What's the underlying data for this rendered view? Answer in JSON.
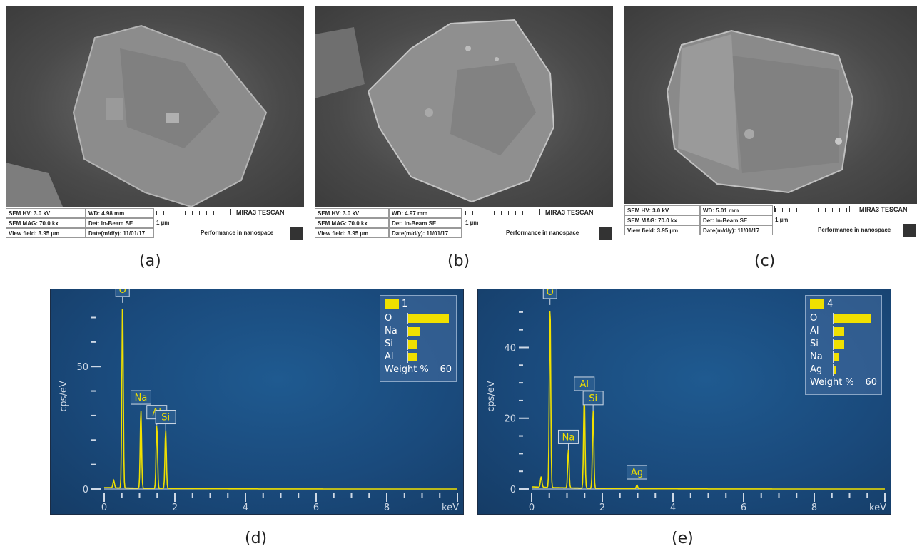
{
  "sem_panels": [
    {
      "hv": "SEM HV: 3.0 kV",
      "wd": "WD: 4.98 mm",
      "mag": "SEM MAG: 70.0 kx",
      "det": "Det: In-Beam SE",
      "scale": "1 µm",
      "field": "View field: 3.95 µm",
      "date": "Date(m/d/y): 11/01/17",
      "brand": "MIRA3 TESCAN",
      "slogan": "Performance in nanospace"
    },
    {
      "hv": "SEM HV: 3.0 kV",
      "wd": "WD: 4.97 mm",
      "mag": "SEM MAG: 70.0 kx",
      "det": "Det: In-Beam SE",
      "scale": "1 µm",
      "field": "View field: 3.95 µm",
      "date": "Date(m/d/y): 11/01/17",
      "brand": "MIRA3 TESCAN",
      "slogan": "Performance in nanospace"
    },
    {
      "hv": "SEM HV: 3.0 kV",
      "wd": "WD: 5.01 mm",
      "mag": "SEM MAG: 70.0 kx",
      "det": "Det: In-Beam SE",
      "scale": "1 µm",
      "field": "View field: 3.95 µm",
      "date": "Date(m/d/y): 11/01/17",
      "brand": "MIRA3 TESCAN",
      "slogan": "Performance in nanospace"
    }
  ],
  "captions": {
    "a": "(a)",
    "b": "(b)",
    "c": "(c)",
    "d": "(d)",
    "e": "(e)"
  },
  "colors": {
    "spectrum": "#f0e000",
    "background": "#1a4a7c",
    "axis": "#cfd9e6"
  },
  "chart_data": [
    {
      "type": "line",
      "ylabel": "cps/eV",
      "xunit": "keV",
      "xlim": [
        0,
        10
      ],
      "ylim": [
        0,
        78
      ],
      "xticks": [
        0,
        2,
        4,
        6,
        8
      ],
      "yticks": [
        0,
        50
      ],
      "peaks": [
        {
          "label": "O",
          "x": 0.52,
          "y": 76
        },
        {
          "label": "Na",
          "x": 1.04,
          "y": 32
        },
        {
          "label": "Al",
          "x": 1.49,
          "y": 26
        },
        {
          "label": "Si",
          "x": 1.74,
          "y": 24
        }
      ],
      "legend": {
        "label": "1",
        "items": [
          {
            "element": "O",
            "value": 57
          },
          {
            "element": "Na",
            "value": 16
          },
          {
            "element": "Si",
            "value": 13
          },
          {
            "element": "Al",
            "value": 13
          }
        ],
        "footer": "Weight %",
        "max": "60"
      }
    },
    {
      "type": "line",
      "ylabel": "cps/eV",
      "xunit": "keV",
      "xlim": [
        0,
        10
      ],
      "ylim": [
        0,
        54
      ],
      "xticks": [
        0,
        2,
        4,
        6,
        8
      ],
      "yticks": [
        0,
        20,
        40
      ],
      "peaks": [
        {
          "label": "O",
          "x": 0.52,
          "y": 52
        },
        {
          "label": "Na",
          "x": 1.04,
          "y": 11
        },
        {
          "label": "Al",
          "x": 1.49,
          "y": 26
        },
        {
          "label": "Si",
          "x": 1.74,
          "y": 22
        },
        {
          "label": "Ag",
          "x": 2.98,
          "y": 1
        }
      ],
      "legend": {
        "label": "4",
        "items": [
          {
            "element": "O",
            "value": 52
          },
          {
            "element": "Al",
            "value": 15
          },
          {
            "element": "Si",
            "value": 15
          },
          {
            "element": "Na",
            "value": 7
          },
          {
            "element": "Ag",
            "value": 4
          }
        ],
        "footer": "Weight %",
        "max": "60"
      }
    }
  ]
}
